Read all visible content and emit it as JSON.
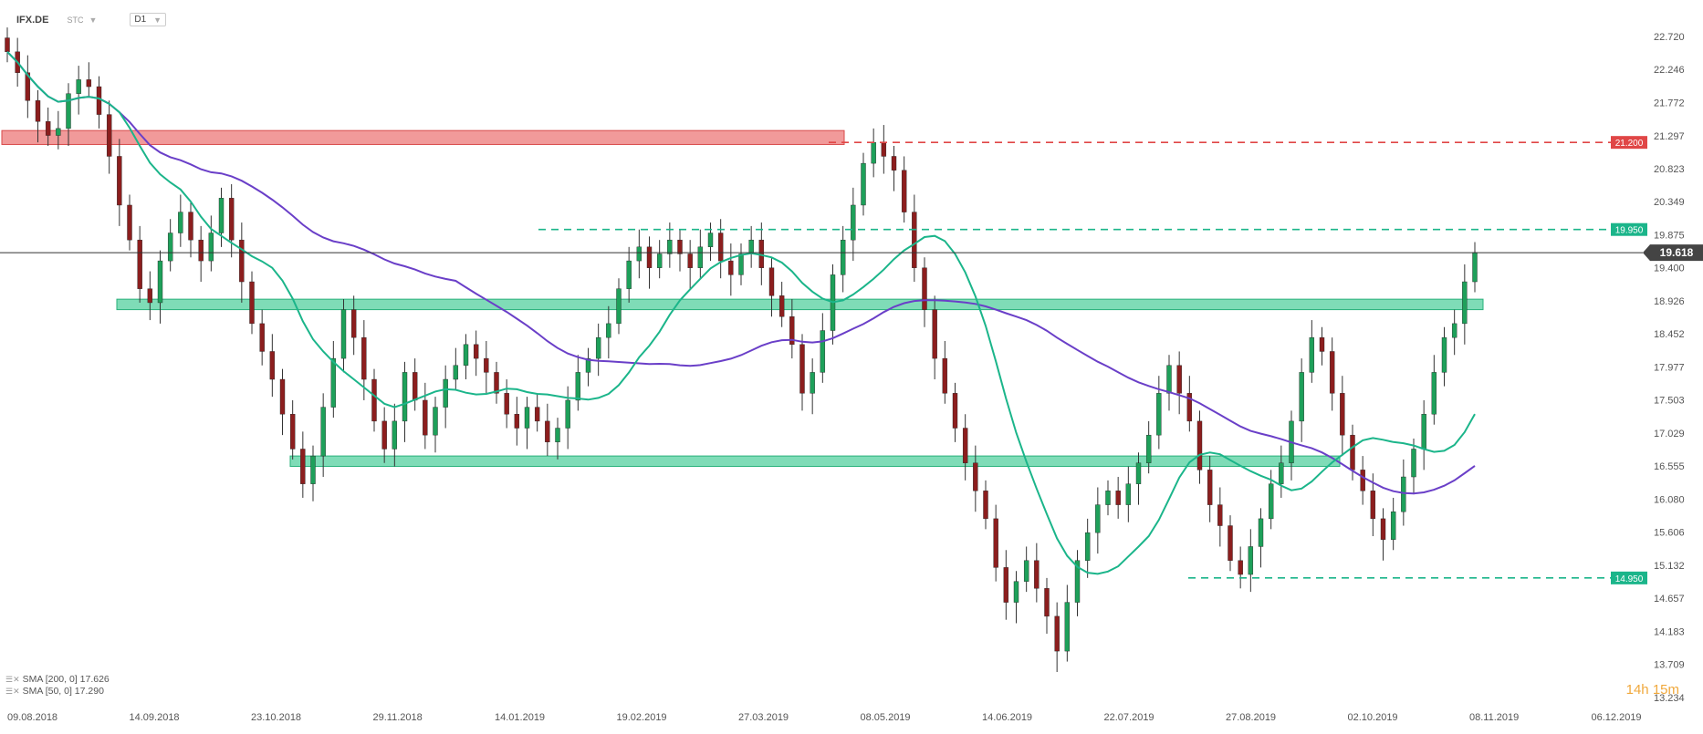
{
  "header": {
    "symbol": "IFX.DE",
    "type": "STC",
    "timeframe": "D1"
  },
  "legend": [
    {
      "label": "SMA [200, 0] 17.626",
      "color": "#6a3fc8"
    },
    {
      "label": "SMA [50, 0] 17.290",
      "color": "#1bb58a"
    }
  ],
  "countdown": {
    "hours": "14",
    "hours_unit": "h",
    "minutes": "15",
    "minutes_unit": "m"
  },
  "colors": {
    "up": "#1ea05a",
    "down": "#8c1e1e",
    "sma200": "#6a3fc8",
    "sma50": "#1bb58a",
    "resistance": "#e04646",
    "support": "#2ecc8a",
    "current": "#333333"
  },
  "chart_data": {
    "type": "candlestick",
    "ylim": [
      13.234,
      22.72
    ],
    "y_ticks": [
      "22.720",
      "22.246",
      "21.772",
      "21.297",
      "20.823",
      "20.349",
      "19.875",
      "19.400",
      "18.926",
      "18.452",
      "17.977",
      "17.503",
      "17.029",
      "16.555",
      "16.080",
      "15.606",
      "15.132",
      "14.657",
      "14.183",
      "13.709",
      "13.234"
    ],
    "x_ticks": [
      "09.08.2018",
      "14.09.2018",
      "23.10.2018",
      "29.11.2018",
      "14.01.2019",
      "19.02.2019",
      "27.03.2019",
      "08.05.2019",
      "14.06.2019",
      "22.07.2019",
      "27.08.2019",
      "02.10.2019",
      "08.11.2019",
      "06.12.2019"
    ],
    "current_price": "19.618",
    "price_levels": [
      {
        "label": "21.200",
        "value": 21.2,
        "color": "#e04646"
      },
      {
        "label": "19.950",
        "value": 19.95,
        "color": "#1bb58a"
      },
      {
        "label": "14.950",
        "value": 14.95,
        "color": "#1bb58a"
      }
    ],
    "zones": [
      {
        "kind": "resistance",
        "from": 21.17,
        "to": 21.37,
        "start": "09.08.2018",
        "end": "15.04.2019"
      },
      {
        "kind": "support",
        "from": 18.8,
        "to": 18.95,
        "start": "24.08.2018",
        "end": "08.11.2019"
      },
      {
        "kind": "support",
        "from": 16.55,
        "to": 16.7,
        "start": "23.10.2018",
        "end": "25.09.2019"
      }
    ],
    "candles_close": [
      22.5,
      22.2,
      21.8,
      21.5,
      21.3,
      21.4,
      21.9,
      22.1,
      22.0,
      21.6,
      21.0,
      20.3,
      19.8,
      19.1,
      18.9,
      19.5,
      19.9,
      20.2,
      19.8,
      19.5,
      19.9,
      20.4,
      19.8,
      19.2,
      18.6,
      18.2,
      17.8,
      17.3,
      16.8,
      16.3,
      16.7,
      17.4,
      18.1,
      18.8,
      18.4,
      17.8,
      17.2,
      16.8,
      17.2,
      17.9,
      17.5,
      17.0,
      17.4,
      17.8,
      18.0,
      18.3,
      18.1,
      17.9,
      17.6,
      17.3,
      17.1,
      17.4,
      17.2,
      16.9,
      17.1,
      17.5,
      17.9,
      18.1,
      18.4,
      18.6,
      19.1,
      19.5,
      19.7,
      19.4,
      19.6,
      19.8,
      19.6,
      19.4,
      19.7,
      19.9,
      19.5,
      19.3,
      19.6,
      19.8,
      19.4,
      19.0,
      18.7,
      18.3,
      17.6,
      17.9,
      18.5,
      19.3,
      19.8,
      20.3,
      20.9,
      21.2,
      21.0,
      20.8,
      20.2,
      19.4,
      18.8,
      18.1,
      17.6,
      17.1,
      16.6,
      16.2,
      15.8,
      15.1,
      14.6,
      14.9,
      15.2,
      14.8,
      14.4,
      13.9,
      14.6,
      15.2,
      15.6,
      16.0,
      16.2,
      16.0,
      16.3,
      16.6,
      17.0,
      17.6,
      18.0,
      17.6,
      17.2,
      16.5,
      16.0,
      15.7,
      15.2,
      15.0,
      15.4,
      15.8,
      16.3,
      16.6,
      17.2,
      17.9,
      18.4,
      18.2,
      17.6,
      17.0,
      16.5,
      16.2,
      15.8,
      15.5,
      15.9,
      16.4,
      16.8,
      17.3,
      17.9,
      18.4,
      18.6,
      19.2,
      19.62
    ]
  }
}
